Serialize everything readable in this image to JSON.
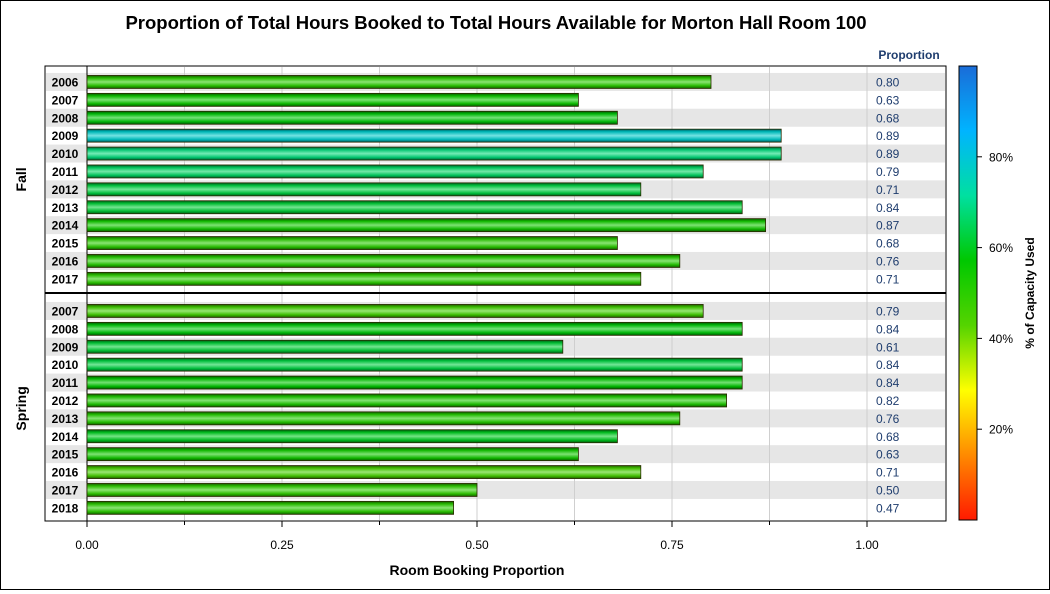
{
  "chart_data": {
    "type": "bar",
    "orientation": "horizontal",
    "title": "Proportion of Total Hours Booked to Total Hours Available for Morton Hall Room 100",
    "xlabel": "Room Booking Proportion",
    "value_column_header": "Proportion",
    "xlim": [
      0,
      1.1
    ],
    "xticks": [
      "0.00",
      "0.25",
      "0.50",
      "0.75",
      "1.00"
    ],
    "grid": true,
    "colorbar": {
      "label": "% of Capacity Used",
      "range": [
        0,
        100
      ],
      "ticks": [
        "20%",
        "40%",
        "60%",
        "80%"
      ],
      "colors": [
        "#ff1a00",
        "#ff8a00",
        "#ffff00",
        "#55d400",
        "#00c800",
        "#00e0a0",
        "#00b4ff",
        "#1a6cd8"
      ]
    },
    "panels": [
      {
        "label": "Fall",
        "rows": [
          {
            "year": "2006",
            "value": 0.8,
            "label": "0.80",
            "capacity": 50
          },
          {
            "year": "2007",
            "value": 0.63,
            "label": "0.63",
            "capacity": 55
          },
          {
            "year": "2008",
            "value": 0.68,
            "label": "0.68",
            "capacity": 58
          },
          {
            "year": "2009",
            "value": 0.89,
            "label": "0.89",
            "capacity": 78
          },
          {
            "year": "2010",
            "value": 0.89,
            "label": "0.89",
            "capacity": 68
          },
          {
            "year": "2011",
            "value": 0.79,
            "label": "0.79",
            "capacity": 66
          },
          {
            "year": "2012",
            "value": 0.71,
            "label": "0.71",
            "capacity": 63
          },
          {
            "year": "2013",
            "value": 0.84,
            "label": "0.84",
            "capacity": 62
          },
          {
            "year": "2014",
            "value": 0.87,
            "label": "0.87",
            "capacity": 54
          },
          {
            "year": "2015",
            "value": 0.68,
            "label": "0.68",
            "capacity": 50
          },
          {
            "year": "2016",
            "value": 0.76,
            "label": "0.76",
            "capacity": 51
          },
          {
            "year": "2017",
            "value": 0.71,
            "label": "0.71",
            "capacity": 50
          }
        ]
      },
      {
        "label": "Spring",
        "rows": [
          {
            "year": "2007",
            "value": 0.79,
            "label": "0.79",
            "capacity": 46
          },
          {
            "year": "2008",
            "value": 0.84,
            "label": "0.84",
            "capacity": 58
          },
          {
            "year": "2009",
            "value": 0.61,
            "label": "0.61",
            "capacity": 62
          },
          {
            "year": "2010",
            "value": 0.84,
            "label": "0.84",
            "capacity": 63
          },
          {
            "year": "2011",
            "value": 0.84,
            "label": "0.84",
            "capacity": 57
          },
          {
            "year": "2012",
            "value": 0.82,
            "label": "0.82",
            "capacity": 52
          },
          {
            "year": "2013",
            "value": 0.76,
            "label": "0.76",
            "capacity": 51
          },
          {
            "year": "2014",
            "value": 0.68,
            "label": "0.68",
            "capacity": 60
          },
          {
            "year": "2015",
            "value": 0.63,
            "label": "0.63",
            "capacity": 54
          },
          {
            "year": "2016",
            "value": 0.71,
            "label": "0.71",
            "capacity": 45
          },
          {
            "year": "2017",
            "value": 0.5,
            "label": "0.50",
            "capacity": 49
          },
          {
            "year": "2018",
            "value": 0.47,
            "label": "0.47",
            "capacity": 50
          }
        ]
      }
    ]
  }
}
